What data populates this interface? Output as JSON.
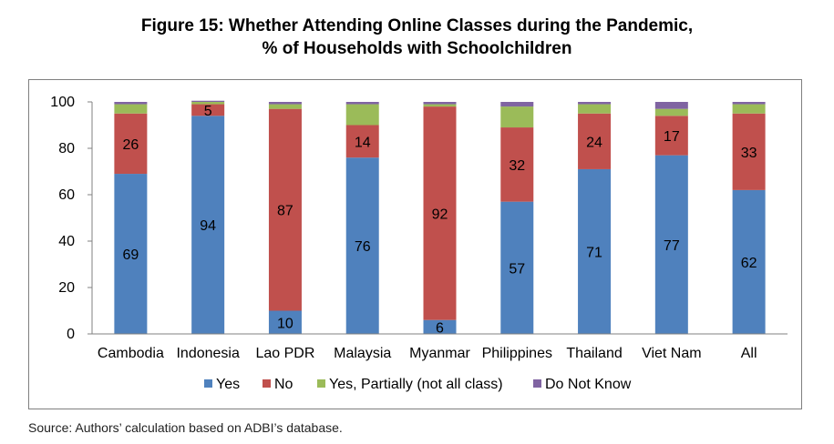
{
  "title_line1": "Figure 15: Whether Attending Online Classes during the Pandemic,",
  "title_line2": "% of Households with Schoolchildren",
  "source": "Source: Authors’ calculation based on ADBI’s database.",
  "colors": {
    "Yes": "#4f81bd",
    "No": "#c0504d",
    "Yes, Partially (not all class)": "#9bbb59",
    "Do Not Know": "#8064a2"
  },
  "chart_data": {
    "type": "bar",
    "stacked": true,
    "categories": [
      "Cambodia",
      "Indonesia",
      "Lao PDR",
      "Malaysia",
      "Myanmar",
      "Philippines",
      "Thailand",
      "Viet Nam",
      "All"
    ],
    "series": [
      {
        "name": "Yes",
        "values": [
          69,
          94,
          10,
          76,
          6,
          57,
          71,
          77,
          62
        ]
      },
      {
        "name": "No",
        "values": [
          26,
          5,
          87,
          14,
          92,
          32,
          24,
          17,
          33
        ]
      },
      {
        "name": "Yes, Partially (not all class)",
        "values": [
          4,
          1,
          2,
          9,
          1,
          9,
          4,
          3,
          4
        ]
      },
      {
        "name": "Do Not Know",
        "values": [
          1,
          0.5,
          1,
          1,
          1,
          2,
          1,
          3,
          1
        ]
      }
    ],
    "value_labels": [
      {
        "series": "Yes",
        "labels": [
          "69",
          "94",
          "10",
          "76",
          "6",
          "57",
          "71",
          "77",
          "62"
        ]
      },
      {
        "series": "No",
        "labels": [
          "26",
          "5",
          "87",
          "14",
          "92",
          "32",
          "24",
          "17",
          "33"
        ]
      }
    ],
    "yticks": [
      "0",
      "20",
      "40",
      "60",
      "80",
      "100"
    ],
    "ylim": [
      0,
      100
    ],
    "legend_position": "bottom",
    "grid": false
  }
}
